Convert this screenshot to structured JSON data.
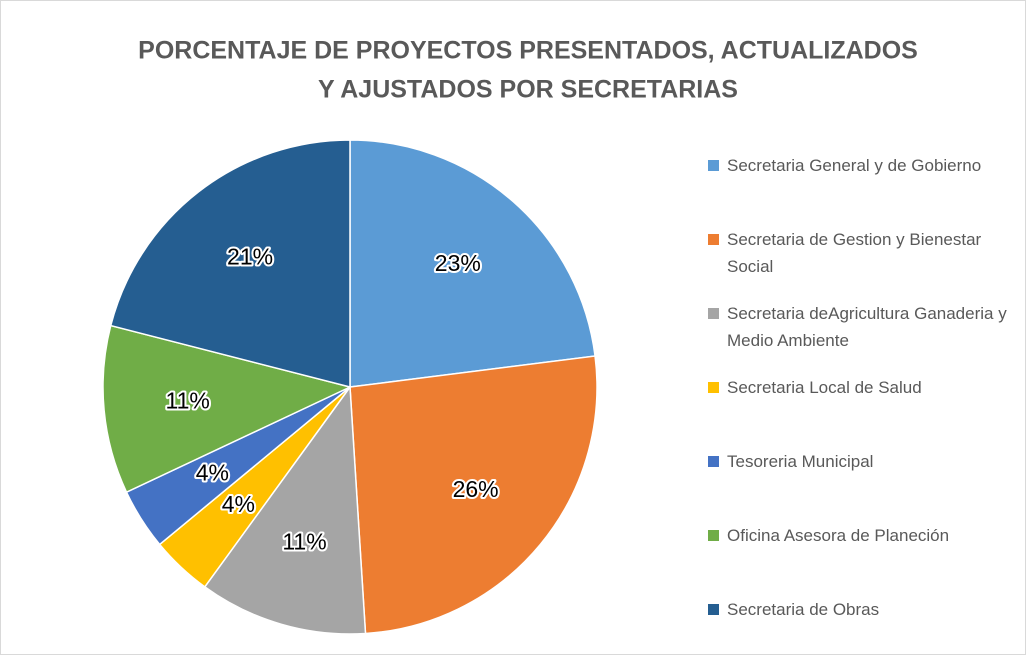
{
  "chart_data": {
    "type": "pie",
    "title": [
      "PORCENTAJE DE PROYECTOS PRESENTADOS, ACTUALIZADOS",
      "Y  AJUSTADOS POR SECRETARIAS"
    ],
    "categories": [
      "Secretaria General y de Gobierno",
      "Secretaria de Gestion y Bienestar Social",
      "Secretaria deAgricultura Ganaderia y Medio Ambiente",
      "Secretaria Local de Salud",
      "Tesoreria Municipal",
      "Oficina Asesora de Planeción",
      "Secretaria de Obras"
    ],
    "values": [
      23,
      26,
      11,
      4,
      4,
      11,
      21
    ],
    "value_labels": [
      "23%",
      "26%",
      "11%",
      "4%",
      "4%",
      "11%",
      "21%"
    ],
    "colors": [
      "#5b9bd5",
      "#ed7d31",
      "#a5a5a5",
      "#ffc000",
      "#4472c4",
      "#70ad47",
      "#255e91"
    ],
    "legend": "right"
  }
}
